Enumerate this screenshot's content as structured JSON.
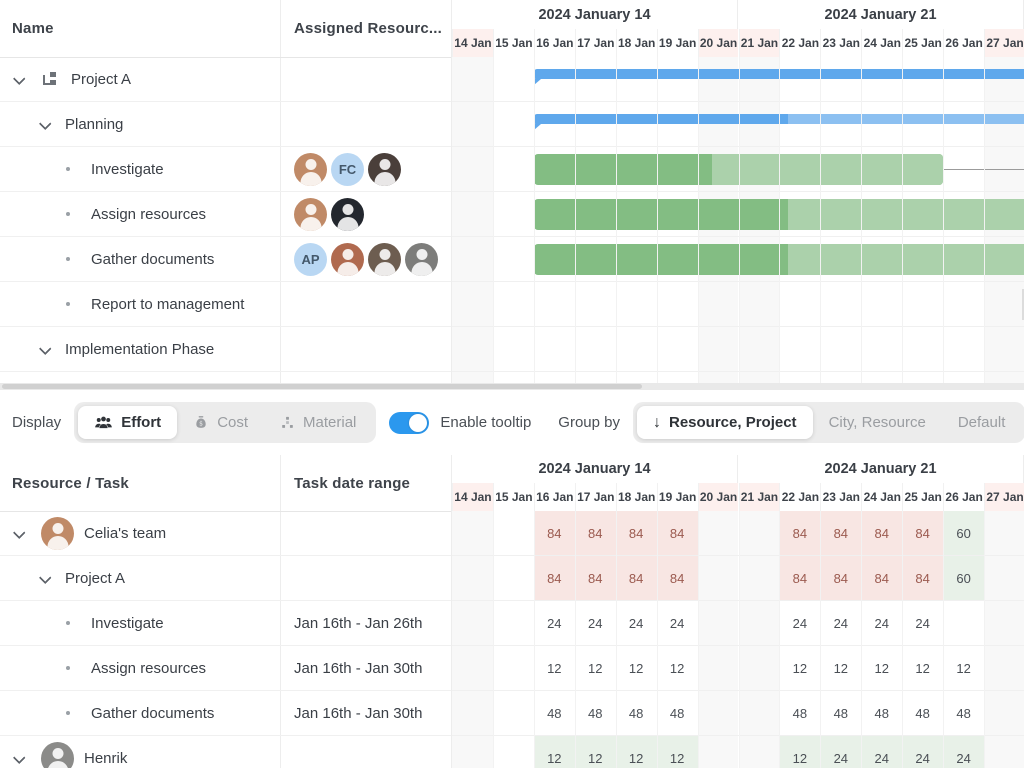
{
  "colors": {
    "summary_bar": "#5fa8ec",
    "summary_bar_light": "#8cc0f1",
    "task_bar": "#83bd83",
    "task_bar_light": "#abd1ab",
    "future_bar": "#dcdcdc",
    "overallocated_bg": "#f8e6e3",
    "overallocated_text": "#9b5a4f",
    "normal_bg": "#e8f1e8",
    "toggle_on": "#2b98ee",
    "weekend_bg": "#f8f8f8",
    "weekend_header_bg": "#fdf0ee",
    "avatar_bg": "#b9d7f3"
  },
  "timeline": {
    "months": [
      {
        "label": "2024 January 14"
      },
      {
        "label": "2024 January 21"
      }
    ],
    "days": [
      "14 Jan",
      "15 Jan",
      "16 Jan",
      "17 Jan",
      "18 Jan",
      "19 Jan",
      "20 Jan",
      "21 Jan",
      "22 Jan",
      "23 Jan",
      "24 Jan",
      "25 Jan",
      "26 Jan",
      "27 Jan"
    ],
    "weekend_days": [
      0,
      6,
      7,
      13
    ]
  },
  "gantt": {
    "columns": {
      "name": "Name",
      "assigned": "Assigned Resourc..."
    },
    "rows": [
      {
        "label": "Project A",
        "kind": "project",
        "bar": {
          "style": "summary",
          "start": 2,
          "end": 14.4,
          "split": 14.4,
          "color": "summary"
        }
      },
      {
        "label": "Planning",
        "kind": "summary",
        "bar": {
          "style": "summary",
          "start": 2,
          "end": 14.4,
          "split": 8.2,
          "color": "summary"
        }
      },
      {
        "label": "Investigate",
        "kind": "task",
        "avatars": [
          {
            "kind": "photo",
            "bg": "#c08a67"
          },
          {
            "kind": "initials",
            "label": "FC"
          },
          {
            "kind": "photo",
            "bg": "#4a3f3a"
          }
        ],
        "bar": {
          "style": "task",
          "start": 2,
          "end": 12,
          "split": 6.35,
          "color": "task",
          "link_after": true
        }
      },
      {
        "label": "Assign resources",
        "kind": "task",
        "avatars": [
          {
            "kind": "photo",
            "bg": "#c08a67"
          },
          {
            "kind": "photo",
            "bg": "#23272e"
          }
        ],
        "bar": {
          "style": "task",
          "start": 2,
          "end": 14.4,
          "split": 8.2,
          "color": "task"
        }
      },
      {
        "label": "Gather documents",
        "kind": "task",
        "avatars": [
          {
            "kind": "initials",
            "label": "AP"
          },
          {
            "kind": "photo",
            "bg": "#b06a4f"
          },
          {
            "kind": "photo",
            "bg": "#6d5d50"
          },
          {
            "kind": "photo",
            "bg": "#7d7d7b"
          }
        ],
        "bar": {
          "style": "task",
          "start": 2,
          "end": 14.4,
          "split": 8.2,
          "color": "task"
        }
      },
      {
        "label": "Report to management",
        "kind": "task",
        "bar": {
          "style": "task",
          "start": 13.93,
          "end": 14.4,
          "split": 13.93,
          "color": "future"
        }
      },
      {
        "label": "Implementation Phase",
        "kind": "summary"
      }
    ]
  },
  "toolbar": {
    "display_label": "Display",
    "display_options": [
      {
        "label": "Effort",
        "active": true
      },
      {
        "label": "Cost",
        "active": false
      },
      {
        "label": "Material",
        "active": false
      }
    ],
    "tooltip_toggle": {
      "label": "Enable tooltip",
      "on": true
    },
    "group_by_label": "Group by",
    "group_options": [
      {
        "label": "Resource, Project",
        "active": true
      },
      {
        "label": "City, Resource",
        "active": false
      },
      {
        "label": "Default",
        "active": false
      }
    ]
  },
  "resource_grid": {
    "columns": {
      "resource": "Resource / Task",
      "range": "Task date range"
    },
    "rows": [
      {
        "label": "Celia's team",
        "kind": "resource",
        "avatar": {
          "kind": "photo",
          "bg": "#c08a67"
        },
        "range": "",
        "cells": [
          null,
          null,
          {
            "v": "84",
            "s": "over"
          },
          {
            "v": "84",
            "s": "over"
          },
          {
            "v": "84",
            "s": "over"
          },
          {
            "v": "84",
            "s": "over"
          },
          null,
          null,
          {
            "v": "84",
            "s": "over"
          },
          {
            "v": "84",
            "s": "over"
          },
          {
            "v": "84",
            "s": "over"
          },
          {
            "v": "84",
            "s": "over"
          },
          {
            "v": "60",
            "s": "ok"
          },
          null
        ]
      },
      {
        "label": "Project A",
        "kind": "group",
        "range": "",
        "cells": [
          null,
          null,
          {
            "v": "84",
            "s": "over"
          },
          {
            "v": "84",
            "s": "over"
          },
          {
            "v": "84",
            "s": "over"
          },
          {
            "v": "84",
            "s": "over"
          },
          null,
          null,
          {
            "v": "84",
            "s": "over"
          },
          {
            "v": "84",
            "s": "over"
          },
          {
            "v": "84",
            "s": "over"
          },
          {
            "v": "84",
            "s": "over"
          },
          {
            "v": "60",
            "s": "ok"
          },
          null
        ]
      },
      {
        "label": "Investigate",
        "kind": "task",
        "range": "Jan 16th - Jan 26th",
        "cells": [
          null,
          null,
          {
            "v": "24",
            "s": "plain"
          },
          {
            "v": "24",
            "s": "plain"
          },
          {
            "v": "24",
            "s": "plain"
          },
          {
            "v": "24",
            "s": "plain"
          },
          null,
          null,
          {
            "v": "24",
            "s": "plain"
          },
          {
            "v": "24",
            "s": "plain"
          },
          {
            "v": "24",
            "s": "plain"
          },
          {
            "v": "24",
            "s": "plain"
          },
          null,
          null
        ]
      },
      {
        "label": "Assign resources",
        "kind": "task",
        "range": "Jan 16th - Jan 30th",
        "cells": [
          null,
          null,
          {
            "v": "12",
            "s": "plain"
          },
          {
            "v": "12",
            "s": "plain"
          },
          {
            "v": "12",
            "s": "plain"
          },
          {
            "v": "12",
            "s": "plain"
          },
          null,
          null,
          {
            "v": "12",
            "s": "plain"
          },
          {
            "v": "12",
            "s": "plain"
          },
          {
            "v": "12",
            "s": "plain"
          },
          {
            "v": "12",
            "s": "plain"
          },
          {
            "v": "12",
            "s": "plain"
          },
          null
        ]
      },
      {
        "label": "Gather documents",
        "kind": "task",
        "range": "Jan 16th - Jan 30th",
        "cells": [
          null,
          null,
          {
            "v": "48",
            "s": "plain"
          },
          {
            "v": "48",
            "s": "plain"
          },
          {
            "v": "48",
            "s": "plain"
          },
          {
            "v": "48",
            "s": "plain"
          },
          null,
          null,
          {
            "v": "48",
            "s": "plain"
          },
          {
            "v": "48",
            "s": "plain"
          },
          {
            "v": "48",
            "s": "plain"
          },
          {
            "v": "48",
            "s": "plain"
          },
          {
            "v": "48",
            "s": "plain"
          },
          null
        ]
      },
      {
        "label": "Henrik",
        "kind": "resource",
        "avatar": {
          "kind": "photo",
          "bg": "#8b8b89"
        },
        "range": "",
        "cells": [
          null,
          null,
          {
            "v": "12",
            "s": "ok"
          },
          {
            "v": "12",
            "s": "ok"
          },
          {
            "v": "12",
            "s": "ok"
          },
          {
            "v": "12",
            "s": "ok"
          },
          null,
          null,
          {
            "v": "12",
            "s": "ok"
          },
          {
            "v": "24",
            "s": "ok"
          },
          {
            "v": "24",
            "s": "ok"
          },
          {
            "v": "24",
            "s": "ok"
          },
          {
            "v": "24",
            "s": "ok"
          },
          null
        ]
      }
    ]
  }
}
